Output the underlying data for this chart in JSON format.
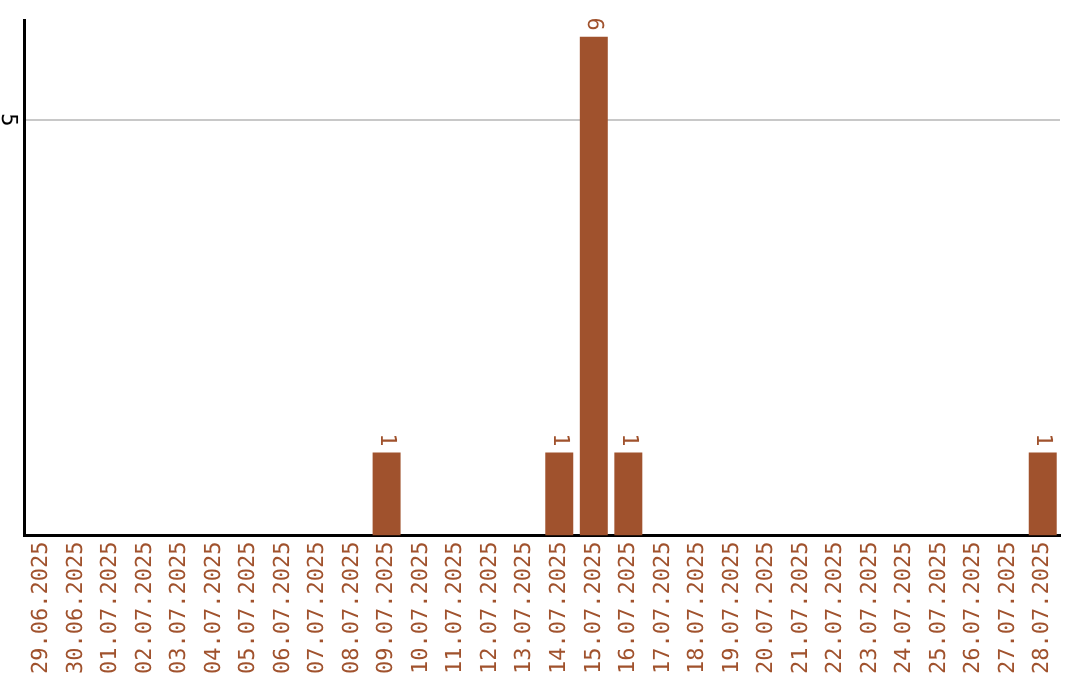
{
  "chart_data": {
    "type": "bar",
    "categories": [
      "29.06.2025",
      "30.06.2025",
      "01.07.2025",
      "02.07.2025",
      "03.07.2025",
      "04.07.2025",
      "05.07.2025",
      "06.07.2025",
      "07.07.2025",
      "08.07.2025",
      "09.07.2025",
      "10.07.2025",
      "11.07.2025",
      "12.07.2025",
      "13.07.2025",
      "14.07.2025",
      "15.07.2025",
      "16.07.2025",
      "17.07.2025",
      "18.07.2025",
      "19.07.2025",
      "20.07.2025",
      "21.07.2025",
      "22.07.2025",
      "23.07.2025",
      "24.07.2025",
      "25.07.2025",
      "26.07.2025",
      "27.07.2025",
      "28.07.2025"
    ],
    "values": [
      0,
      0,
      0,
      0,
      0,
      0,
      0,
      0,
      0,
      0,
      1,
      0,
      0,
      0,
      0,
      1,
      6,
      1,
      0,
      0,
      0,
      0,
      0,
      0,
      0,
      0,
      0,
      0,
      0,
      1
    ],
    "value_labels": [
      null,
      null,
      null,
      null,
      null,
      null,
      null,
      null,
      null,
      null,
      "1",
      null,
      null,
      null,
      null,
      "1",
      "6",
      "1",
      null,
      null,
      null,
      null,
      null,
      null,
      null,
      null,
      null,
      null,
      null,
      "1"
    ],
    "color": "#a0522d",
    "ylim": [
      0,
      6.2
    ],
    "yticks": [
      5
    ],
    "grid": "y",
    "legend": false
  }
}
